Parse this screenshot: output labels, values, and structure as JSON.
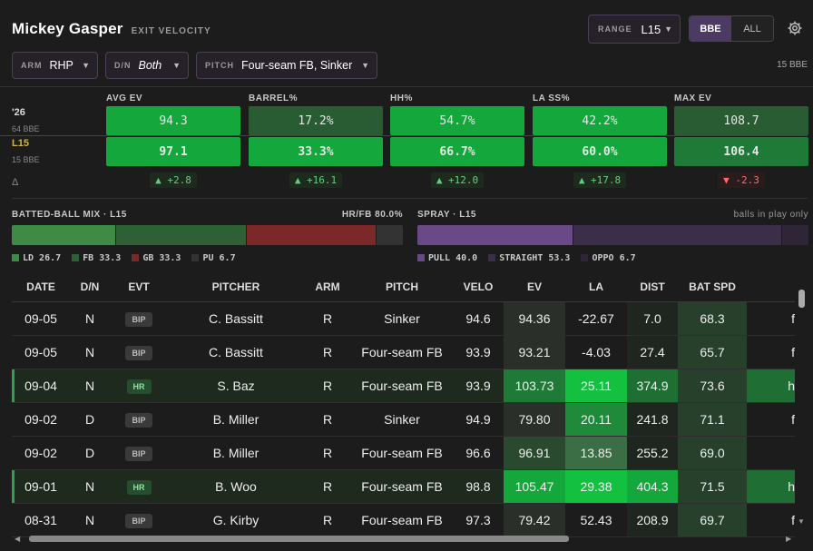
{
  "header": {
    "player": "Mickey Gasper",
    "subtitle": "EXIT VELOCITY"
  },
  "range": {
    "label": "RANGE",
    "value": "L15"
  },
  "toggle": {
    "on": "BBE",
    "off": "ALL"
  },
  "filters": {
    "arm": {
      "label": "ARM",
      "value": "RHP"
    },
    "dn": {
      "label": "D/N",
      "value": "Both"
    },
    "pitch": {
      "label": "PITCH",
      "value": "Four-seam FB, Sinker"
    },
    "count": "15 BBE"
  },
  "rows": {
    "season": {
      "label": "'26",
      "sub": "64 BBE"
    },
    "recent": {
      "label": "L15",
      "sub": "15 BBE"
    },
    "delta_label": "Δ"
  },
  "stats": [
    {
      "head": "AVG EV",
      "season": "94.3",
      "recent": "97.1",
      "delta": "▲ +2.8",
      "dir": "up"
    },
    {
      "head": "BARREL%",
      "season": "17.2%",
      "recent": "33.3%",
      "delta": "▲ +16.1",
      "dir": "up"
    },
    {
      "head": "HH%",
      "season": "54.7%",
      "recent": "66.7%",
      "delta": "▲ +12.0",
      "dir": "up"
    },
    {
      "head": "LA SS%",
      "season": "42.2%",
      "recent": "60.0%",
      "delta": "▲ +17.8",
      "dir": "up"
    },
    {
      "head": "MAX EV",
      "season": "108.7",
      "recent": "106.4",
      "delta": "▼ -2.3",
      "dir": "down"
    }
  ],
  "batted_mix": {
    "title": "BATTED-BALL MIX · L15",
    "hrfb": "HR/FB 80.0%",
    "segments": [
      {
        "label": "LD",
        "value": 26.7,
        "text": "26.7",
        "color": "#3f8a44"
      },
      {
        "label": "FB",
        "value": 33.3,
        "text": "33.3",
        "color": "#2f5f35"
      },
      {
        "label": "GB",
        "value": 33.3,
        "text": "33.3",
        "color": "#7a2828"
      },
      {
        "label": "PU",
        "value": 6.7,
        "text": "6.7",
        "color": "#333333"
      }
    ]
  },
  "spray": {
    "title": "SPRAY · L15",
    "note": "balls in play only",
    "segments": [
      {
        "label": "PULL",
        "value": 40.0,
        "text": "40.0",
        "color": "#6a4a86"
      },
      {
        "label": "STRAIGHT",
        "value": 53.3,
        "text": "53.3",
        "color": "#3b2e48"
      },
      {
        "label": "OPPO",
        "value": 6.7,
        "text": "6.7",
        "color": "#2e2636"
      }
    ]
  },
  "table": {
    "columns": [
      "DATE",
      "D/N",
      "EVT",
      "PITCHER",
      "ARM",
      "PITCH",
      "VELO",
      "EV",
      "LA",
      "DIST",
      "BAT SPD",
      ""
    ],
    "rows": [
      {
        "date": "09-05",
        "dn": "N",
        "evt": "BIP",
        "pitcher": "C. Bassitt",
        "arm": "R",
        "pitch": "Sinker",
        "velo": "94.6",
        "ev": "94.36",
        "la": "-22.67",
        "dist": "7.0",
        "batspd": "68.3",
        "extra": "f",
        "hr": false
      },
      {
        "date": "09-05",
        "dn": "N",
        "evt": "BIP",
        "pitcher": "C. Bassitt",
        "arm": "R",
        "pitch": "Four-seam FB",
        "velo": "93.9",
        "ev": "93.21",
        "la": "-4.03",
        "dist": "27.4",
        "batspd": "65.7",
        "extra": "f",
        "hr": false
      },
      {
        "date": "09-04",
        "dn": "N",
        "evt": "HR",
        "pitcher": "S. Baz",
        "arm": "R",
        "pitch": "Four-seam FB",
        "velo": "93.9",
        "ev": "103.73",
        "la": "25.11",
        "dist": "374.9",
        "batspd": "73.6",
        "extra": "h",
        "hr": true
      },
      {
        "date": "09-02",
        "dn": "D",
        "evt": "BIP",
        "pitcher": "B. Miller",
        "arm": "R",
        "pitch": "Sinker",
        "velo": "94.9",
        "ev": "79.80",
        "la": "20.11",
        "dist": "241.8",
        "batspd": "71.1",
        "extra": "f",
        "hr": false
      },
      {
        "date": "09-02",
        "dn": "D",
        "evt": "BIP",
        "pitcher": "B. Miller",
        "arm": "R",
        "pitch": "Four-seam FB",
        "velo": "96.6",
        "ev": "96.91",
        "la": "13.85",
        "dist": "255.2",
        "batspd": "69.0",
        "extra": "",
        "hr": false
      },
      {
        "date": "09-01",
        "dn": "N",
        "evt": "HR",
        "pitcher": "B. Woo",
        "arm": "R",
        "pitch": "Four-seam FB",
        "velo": "98.8",
        "ev": "105.47",
        "la": "29.38",
        "dist": "404.3",
        "batspd": "71.5",
        "extra": "h",
        "hr": true
      },
      {
        "date": "08-31",
        "dn": "N",
        "evt": "BIP",
        "pitcher": "G. Kirby",
        "arm": "R",
        "pitch": "Four-seam FB",
        "velo": "97.3",
        "ev": "79.42",
        "la": "52.43",
        "dist": "208.9",
        "batspd": "69.7",
        "extra": "f",
        "hr": false
      }
    ]
  },
  "colors": {
    "green_bright": "#14a83c",
    "green_mid": "#1f7a38",
    "green_dark": "#2a5c34",
    "accent_purple": "#4b3b63",
    "up": "#5fd07a",
    "down": "#ff6b6b"
  }
}
